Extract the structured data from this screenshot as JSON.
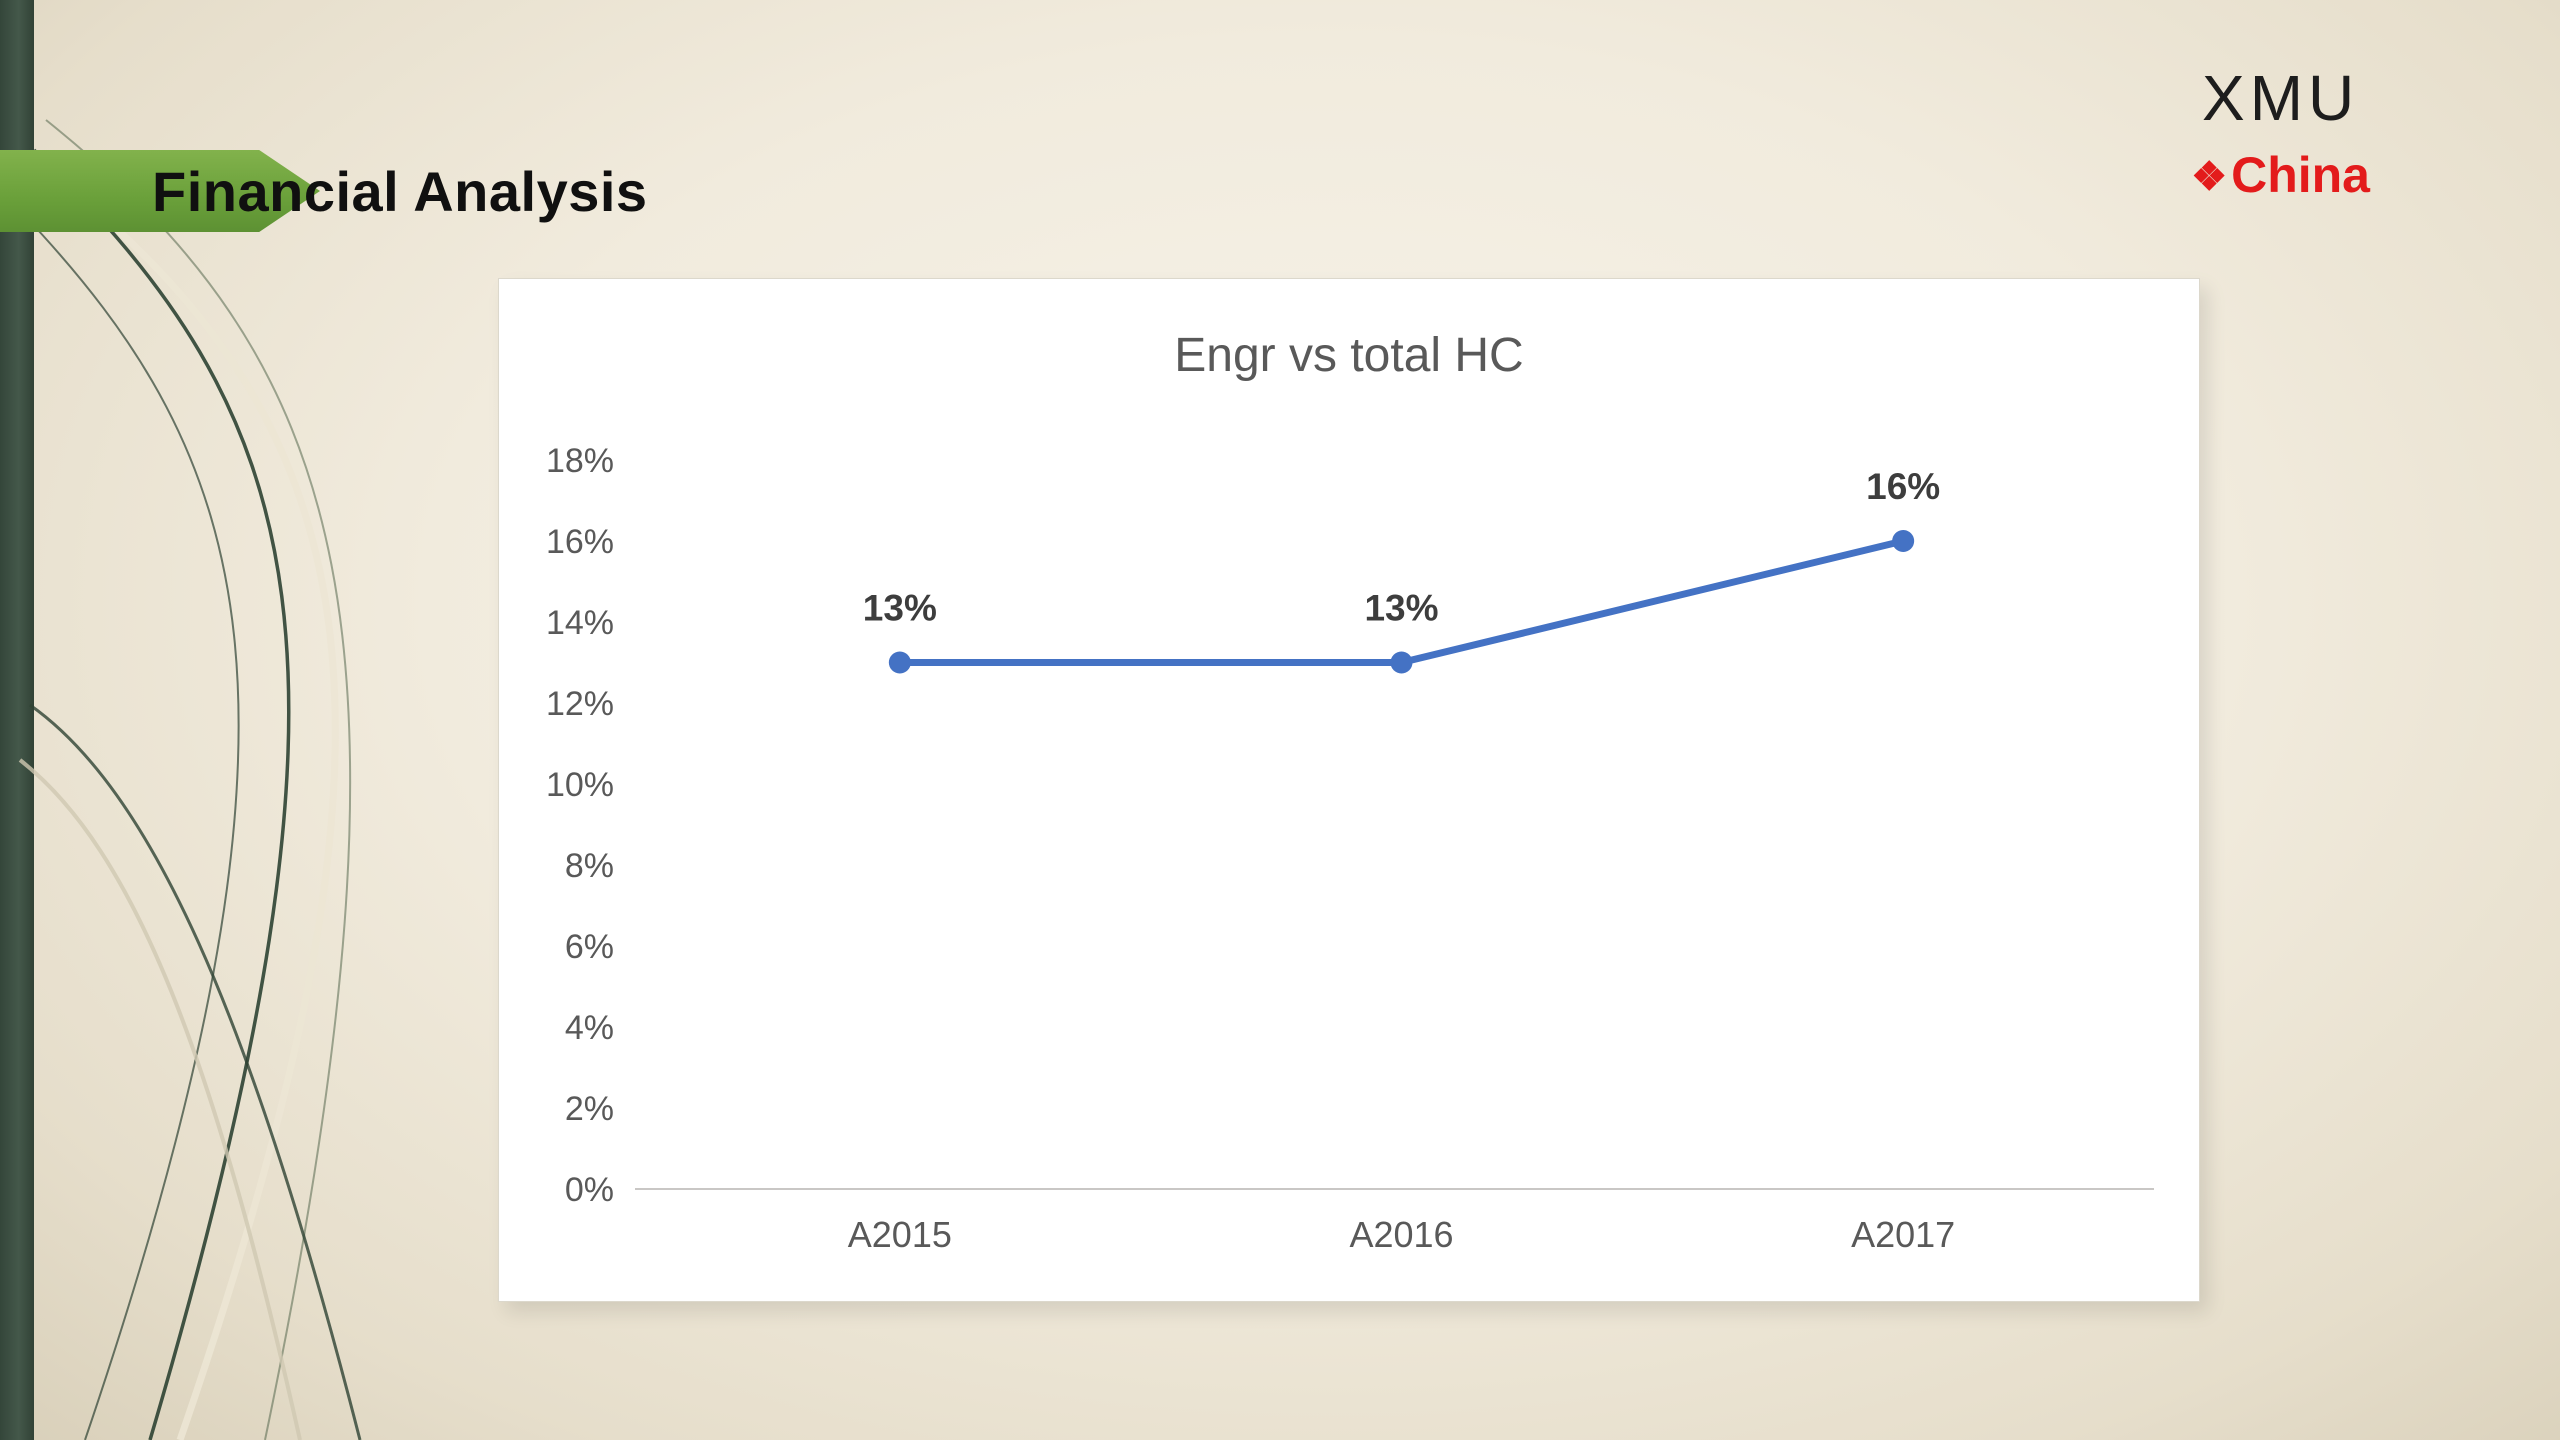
{
  "slide": {
    "title": "Financial Analysis",
    "logo": {
      "xmu": "XMU",
      "diamond": "❖",
      "china": "China"
    }
  },
  "colors": {
    "banner_green": "#6aa03a",
    "left_bar_green": "#3c4f42",
    "logo_red": "#e31b1b",
    "chart_line_blue": "#4472c4",
    "chart_text_gray": "#595959"
  },
  "chart_data": {
    "type": "line",
    "title": "Engr vs total HC",
    "categories": [
      "A2015",
      "A2016",
      "A2017"
    ],
    "values": [
      13,
      13,
      16
    ],
    "data_labels": [
      "13%",
      "13%",
      "16%"
    ],
    "ylim": [
      0,
      18
    ],
    "ytick_step": 2,
    "ytick_labels": [
      "0%",
      "2%",
      "4%",
      "6%",
      "8%",
      "10%",
      "12%",
      "14%",
      "16%",
      "18%"
    ],
    "xlabel": "",
    "ylabel": "",
    "grid": false,
    "legend": false,
    "line_color": "#4472c4",
    "marker": "circle"
  }
}
